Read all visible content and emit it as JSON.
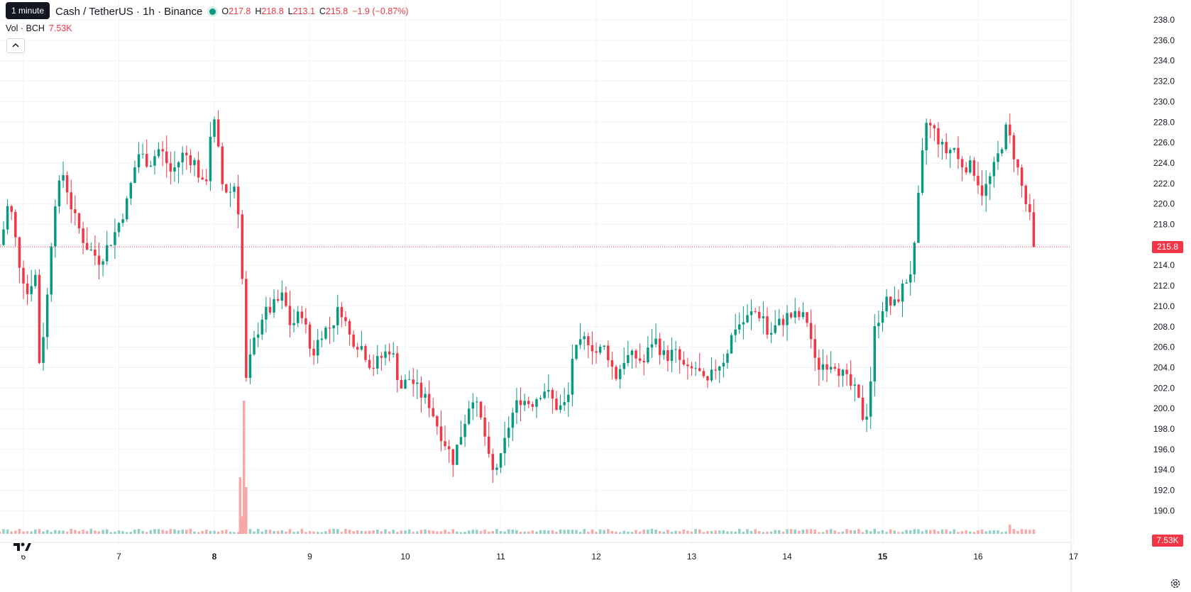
{
  "legend": {
    "tooltip": "1 minute",
    "symbol": "Cash / TetherUS · 1h · Binance",
    "open_label": "O",
    "open": "217.8",
    "high_label": "H",
    "high": "218.8",
    "low_label": "L",
    "low": "213.1",
    "close_label": "C",
    "close": "215.8",
    "change": "−1.9 (−0.87%)"
  },
  "volume_legend": {
    "label": "Vol · BCH",
    "value": "7.53K"
  },
  "price_scale": {
    "last_price": "215.8",
    "last_volume": "7.53K"
  },
  "colors": {
    "up": "#089981",
    "down": "#f23645",
    "up_vol": "#91d0c5",
    "down_vol": "#f7a9a7",
    "grid": "#f0f3fa"
  },
  "icons": {
    "collapse": "chevron-up-icon",
    "logo": "tradingview-logo-icon",
    "settings": "gear-icon"
  },
  "chart_data": {
    "type": "candlestick",
    "title": "Cash / TetherUS · 1h · Binance",
    "x_ticks": [
      {
        "label": "6",
        "bold": false
      },
      {
        "label": "7",
        "bold": false
      },
      {
        "label": "8",
        "bold": true
      },
      {
        "label": "9",
        "bold": false
      },
      {
        "label": "10",
        "bold": false
      },
      {
        "label": "11",
        "bold": false
      },
      {
        "label": "12",
        "bold": false
      },
      {
        "label": "13",
        "bold": false
      },
      {
        "label": "14",
        "bold": false
      },
      {
        "label": "15",
        "bold": true
      },
      {
        "label": "16",
        "bold": false
      },
      {
        "label": "17",
        "bold": false
      }
    ],
    "y_ticks": [
      "238.0",
      "236.0",
      "234.0",
      "232.0",
      "230.0",
      "228.0",
      "226.0",
      "224.0",
      "222.0",
      "220.0",
      "218.0",
      "216.0",
      "214.0",
      "212.0",
      "210.0",
      "208.0",
      "206.0",
      "204.0",
      "202.0",
      "200.0",
      "198.0",
      "196.0",
      "194.0",
      "192.0",
      "190.0"
    ],
    "ylim": [
      189.4,
      238.8
    ],
    "xlim_days": [
      5.8,
      17.0
    ],
    "last_price": 215.8,
    "anchors": [
      [
        5.76,
        216
      ],
      [
        5.85,
        220.5
      ],
      [
        5.95,
        214.5
      ],
      [
        6.05,
        211
      ],
      [
        6.12,
        214
      ],
      [
        6.17,
        204
      ],
      [
        6.25,
        211
      ],
      [
        6.32,
        220
      ],
      [
        6.42,
        223
      ],
      [
        6.52,
        219
      ],
      [
        6.65,
        216
      ],
      [
        6.8,
        214.5
      ],
      [
        6.95,
        217
      ],
      [
        7.08,
        220
      ],
      [
        7.2,
        225
      ],
      [
        7.32,
        224
      ],
      [
        7.43,
        225.5
      ],
      [
        7.55,
        223
      ],
      [
        7.68,
        225
      ],
      [
        7.8,
        224
      ],
      [
        7.9,
        221
      ],
      [
        7.98,
        229
      ],
      [
        8.03,
        226
      ],
      [
        8.08,
        222
      ],
      [
        8.15,
        221
      ],
      [
        8.22,
        222
      ],
      [
        8.28,
        217
      ],
      [
        8.32,
        202
      ],
      [
        8.4,
        206
      ],
      [
        8.5,
        209
      ],
      [
        8.62,
        210
      ],
      [
        8.72,
        211
      ],
      [
        8.8,
        208
      ],
      [
        8.92,
        209.5
      ],
      [
        9.02,
        205
      ],
      [
        9.12,
        207.5
      ],
      [
        9.22,
        208
      ],
      [
        9.32,
        210
      ],
      [
        9.42,
        207
      ],
      [
        9.55,
        206
      ],
      [
        9.65,
        204
      ],
      [
        9.75,
        205
      ],
      [
        9.85,
        206
      ],
      [
        9.95,
        202
      ],
      [
        10.05,
        203
      ],
      [
        10.15,
        201.5
      ],
      [
        10.25,
        200.5
      ],
      [
        10.35,
        198
      ],
      [
        10.5,
        195
      ],
      [
        10.6,
        198
      ],
      [
        10.7,
        201.5
      ],
      [
        10.82,
        198
      ],
      [
        10.9,
        193.5
      ],
      [
        11.0,
        195
      ],
      [
        11.1,
        199
      ],
      [
        11.2,
        201
      ],
      [
        11.32,
        200.5
      ],
      [
        11.45,
        202
      ],
      [
        11.6,
        200
      ],
      [
        11.7,
        200.5
      ],
      [
        11.75,
        205
      ],
      [
        11.9,
        207
      ],
      [
        12.0,
        205.5
      ],
      [
        12.1,
        206
      ],
      [
        12.2,
        203
      ],
      [
        12.3,
        205
      ],
      [
        12.42,
        205
      ],
      [
        12.5,
        204.5
      ],
      [
        12.6,
        207
      ],
      [
        12.72,
        205
      ],
      [
        12.82,
        205.5
      ],
      [
        12.95,
        203.5
      ],
      [
        13.05,
        204
      ],
      [
        13.15,
        202
      ],
      [
        13.25,
        204
      ],
      [
        13.35,
        205
      ],
      [
        13.45,
        208
      ],
      [
        13.55,
        208.5
      ],
      [
        13.65,
        209.5
      ],
      [
        13.75,
        209
      ],
      [
        13.8,
        207
      ],
      [
        13.88,
        208
      ],
      [
        14.0,
        209
      ],
      [
        14.15,
        209
      ],
      [
        14.22,
        208.5
      ],
      [
        14.3,
        204
      ],
      [
        14.4,
        204.5
      ],
      [
        14.5,
        204.5
      ],
      [
        14.6,
        203
      ],
      [
        14.72,
        201.5
      ],
      [
        14.8,
        199
      ],
      [
        14.85,
        200
      ],
      [
        14.92,
        208
      ],
      [
        15.02,
        210.5
      ],
      [
        15.12,
        210
      ],
      [
        15.22,
        212
      ],
      [
        15.32,
        214
      ],
      [
        15.38,
        221
      ],
      [
        15.45,
        228
      ],
      [
        15.55,
        227
      ],
      [
        15.65,
        225
      ],
      [
        15.75,
        225.5
      ],
      [
        15.8,
        224
      ],
      [
        15.95,
        223.5
      ],
      [
        16.05,
        221
      ],
      [
        16.15,
        223
      ],
      [
        16.22,
        225
      ],
      [
        16.3,
        227.5
      ],
      [
        16.4,
        224
      ],
      [
        16.5,
        220
      ],
      [
        16.58,
        217.2
      ],
      [
        16.6,
        215.8
      ]
    ],
    "volume_spike": {
      "day": 8.32,
      "values": [
        41,
        110,
        128
      ]
    }
  }
}
